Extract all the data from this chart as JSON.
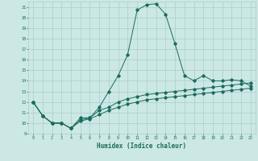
{
  "xlabel": "Humidex (Indice chaleur)",
  "xlim": [
    -0.5,
    23.5
  ],
  "ylim": [
    9,
    21.5
  ],
  "xticks": [
    0,
    1,
    2,
    3,
    4,
    5,
    6,
    7,
    8,
    9,
    10,
    11,
    12,
    13,
    14,
    15,
    16,
    17,
    18,
    19,
    20,
    21,
    22,
    23
  ],
  "yticks": [
    9,
    10,
    11,
    12,
    13,
    14,
    15,
    16,
    17,
    18,
    19,
    20,
    21
  ],
  "bg_color": "#cce8e4",
  "line_color": "#1a6b5e",
  "grid_color": "#aacccc",
  "lines": [
    {
      "x": [
        0,
        1,
        2,
        3,
        4,
        5,
        6,
        7,
        8,
        9,
        10,
        11,
        12,
        13,
        14,
        15,
        16,
        17,
        18,
        19,
        20,
        21,
        22,
        23
      ],
      "y": [
        12,
        10.7,
        10,
        10,
        9.5,
        10.5,
        10.5,
        11.5,
        13,
        14.5,
        16.5,
        20.7,
        21.2,
        21.3,
        20.3,
        17.5,
        14.5,
        14,
        14.5,
        14,
        14,
        14.1,
        14,
        13.5
      ]
    },
    {
      "x": [
        0,
        1,
        2,
        3,
        4,
        5,
        6,
        7,
        8,
        9,
        10,
        11,
        12,
        13,
        14,
        15,
        16,
        17,
        18,
        19,
        20,
        21,
        22,
        23
      ],
      "y": [
        12,
        10.7,
        10,
        10,
        9.5,
        10.3,
        10.5,
        11.2,
        11.5,
        12.0,
        12.3,
        12.5,
        12.7,
        12.8,
        12.9,
        13.0,
        13.1,
        13.2,
        13.3,
        13.4,
        13.5,
        13.6,
        13.7,
        13.8
      ]
    },
    {
      "x": [
        0,
        1,
        2,
        3,
        4,
        5,
        6,
        7,
        8,
        9,
        10,
        11,
        12,
        13,
        14,
        15,
        16,
        17,
        18,
        19,
        20,
        21,
        22,
        23
      ],
      "y": [
        12,
        10.7,
        10,
        10,
        9.5,
        10.2,
        10.4,
        10.8,
        11.2,
        11.5,
        11.8,
        12.0,
        12.2,
        12.3,
        12.4,
        12.5,
        12.6,
        12.7,
        12.8,
        12.9,
        13.0,
        13.1,
        13.2,
        13.3
      ]
    }
  ]
}
